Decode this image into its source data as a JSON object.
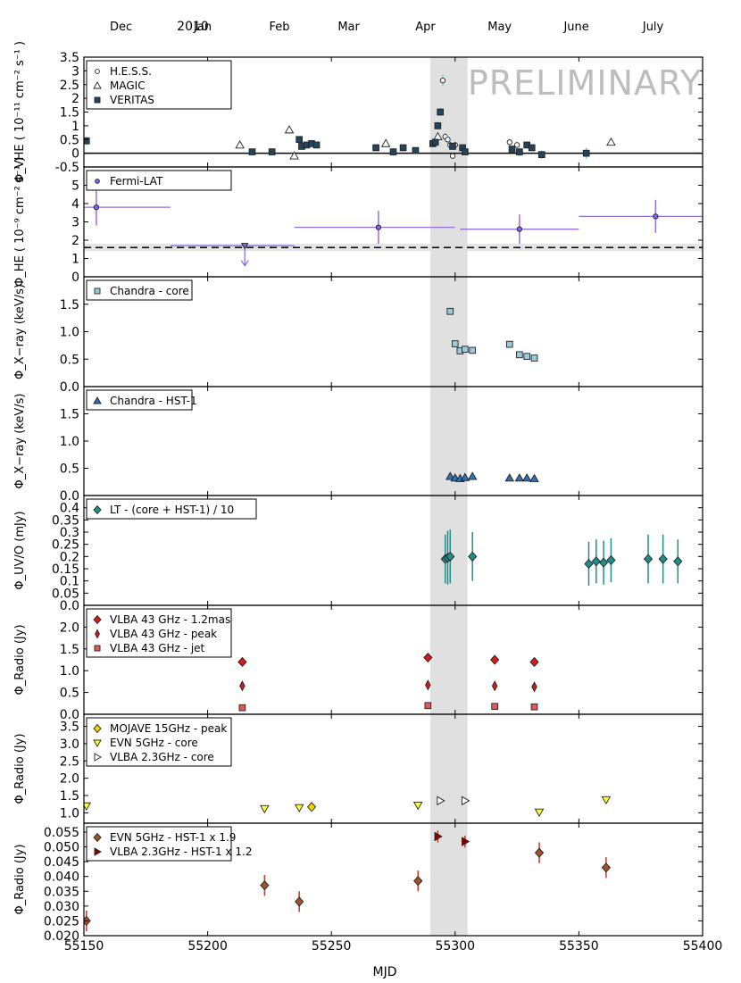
{
  "figure": {
    "year_label": "2010",
    "x_label": "MJD",
    "watermark": "PRELIMINARY",
    "months": [
      "Dec",
      "Jan",
      "Feb",
      "Mar",
      "Apr",
      "May",
      "June",
      "July"
    ],
    "month_positions_mjd": [
      55165,
      55198,
      55229,
      55257,
      55288,
      55318,
      55349,
      55380
    ],
    "xlim": [
      55150,
      55400
    ],
    "xticks": [
      55150,
      55200,
      55250,
      55300,
      55350,
      55400
    ],
    "shaded_band_mjd": [
      55290,
      55305
    ],
    "colors": {
      "band": "#e0e0e0",
      "axis": "#000000"
    }
  },
  "chart_data": [
    {
      "id": "vhe",
      "type": "scatter",
      "ylabel": "Φ_VHE ( 10⁻¹¹ cm⁻² s⁻¹ )",
      "ylim": [
        -0.5,
        3.5
      ],
      "yticks": [
        -0.5,
        0,
        0.5,
        1,
        1.5,
        2,
        2.5,
        3,
        3.5
      ],
      "ytick_labels": [
        "-0.5",
        "0",
        "0.5",
        "1",
        "1.5",
        "2",
        "2.5",
        "3",
        "3.5"
      ],
      "hline": 0,
      "legend_loc": "top-left",
      "series": [
        {
          "name": "H.E.S.S.",
          "marker": "circle",
          "color": "#ffffff",
          "err_color": "#7ec8e3",
          "x": [
            55295,
            55296,
            55297,
            55298,
            55299,
            55300,
            55322,
            55325
          ],
          "y": [
            2.65,
            0.6,
            0.5,
            0.3,
            -0.1,
            0.3,
            0.4,
            0.3
          ],
          "err": [
            0.2,
            0.15,
            0.15,
            0.15,
            0.1,
            0.1,
            0.12,
            0.12
          ]
        },
        {
          "name": "MAGIC",
          "marker": "triangle",
          "color": "#ffffff",
          "err_color": "#7ec8e3",
          "x": [
            55213,
            55233,
            55235,
            55272,
            55293,
            55363
          ],
          "y": [
            0.3,
            0.85,
            -0.1,
            0.35,
            0.6,
            0.4
          ],
          "err": [
            0.1,
            0.12,
            0.1,
            0.1,
            0.15,
            0.12
          ]
        },
        {
          "name": "VERITAS",
          "marker": "square",
          "color": "#24445c",
          "err_color": "#7ec8e3",
          "x": [
            55151,
            55218,
            55226,
            55237,
            55238,
            55240,
            55242,
            55244,
            55268,
            55275,
            55279,
            55284,
            55291,
            55292,
            55293,
            55294,
            55299,
            55303,
            55304,
            55323,
            55326,
            55329,
            55331,
            55335,
            55353
          ],
          "y": [
            0.45,
            0.05,
            0.05,
            0.5,
            0.25,
            0.3,
            0.35,
            0.3,
            0.2,
            0.05,
            0.2,
            0.1,
            0.35,
            0.4,
            1.0,
            1.5,
            0.25,
            0.2,
            0.05,
            0.15,
            0.05,
            0.3,
            0.2,
            -0.05,
            0.0
          ],
          "err": [
            0.15,
            0.1,
            0.12,
            0.1,
            0.12,
            0.1,
            0.1,
            0.1,
            0.12,
            0.15,
            0.12,
            0.12,
            0.1,
            0.12,
            0.15,
            0.15,
            0.1,
            0.12,
            0.12,
            0.12,
            0.15,
            0.12,
            0.12,
            0.15,
            0.2
          ]
        }
      ]
    },
    {
      "id": "he",
      "type": "scatter",
      "ylabel": "Φ_HE ( 10⁻⁹ cm⁻² s⁻¹ )",
      "ylim": [
        0,
        6
      ],
      "yticks": [
        0,
        1,
        2,
        3,
        4,
        5
      ],
      "ytick_labels": [
        "0",
        "1",
        "2",
        "3",
        "4",
        "5"
      ],
      "hline": 1.6,
      "hline_dashed": true,
      "hband": [
        1.4,
        1.8
      ],
      "legend_loc": "top-left",
      "series": [
        {
          "name": "Fermi-LAT",
          "marker": "circle",
          "color": "#7b68ee",
          "err_color": "#9370db",
          "x": [
            55155,
            55269,
            55326,
            55381
          ],
          "y": [
            3.8,
            2.7,
            2.6,
            3.3
          ],
          "err": [
            1.0,
            0.9,
            0.8,
            0.9
          ],
          "xerr": [
            [
              55150,
              55185
            ],
            [
              55235,
              55300
            ],
            [
              55302,
              55350
            ],
            [
              55350,
              55400
            ]
          ]
        },
        {
          "name": "Fermi-LAT upper limit",
          "marker": "down-triangle",
          "color": "#7b68ee",
          "x": [
            55215
          ],
          "y": [
            1.7
          ],
          "xerr": [
            [
              55185,
              55235
            ]
          ],
          "upper_limit": true
        }
      ]
    },
    {
      "id": "xray_core",
      "type": "scatter",
      "ylabel": "Φ_X−ray (keV/s)",
      "ylim": [
        0,
        2
      ],
      "yticks": [
        0,
        0.5,
        1,
        1.5
      ],
      "ytick_labels": [
        "0.0",
        "0.5",
        "1.0",
        "1.5"
      ],
      "legend_loc": "top-left",
      "series": [
        {
          "name": "Chandra - core",
          "marker": "square",
          "color": "#9ec9d9",
          "x": [
            55298,
            55300,
            55302,
            55304,
            55307,
            55322,
            55326,
            55329,
            55332
          ],
          "y": [
            1.37,
            0.78,
            0.65,
            0.68,
            0.66,
            0.77,
            0.58,
            0.55,
            0.52
          ]
        }
      ]
    },
    {
      "id": "xray_hst1",
      "type": "scatter",
      "ylabel": "Φ_X−ray (keV/s)",
      "ylim": [
        0,
        2
      ],
      "yticks": [
        0,
        0.5,
        1,
        1.5
      ],
      "ytick_labels": [
        "0.0",
        "0.5",
        "1.0",
        "1.5"
      ],
      "legend_loc": "top-left",
      "series": [
        {
          "name": "Chandra - HST-1",
          "marker": "triangle",
          "color": "#2e73b8",
          "x": [
            55298,
            55300,
            55302,
            55304,
            55307,
            55322,
            55326,
            55329,
            55332
          ],
          "y": [
            0.35,
            0.32,
            0.31,
            0.33,
            0.35,
            0.32,
            0.32,
            0.32,
            0.31
          ]
        }
      ]
    },
    {
      "id": "uvo",
      "type": "scatter",
      "ylabel": "Φ_UV/O (mJy)",
      "ylim": [
        0,
        0.45
      ],
      "yticks": [
        0,
        0.05,
        0.1,
        0.15,
        0.2,
        0.25,
        0.3,
        0.35,
        0.4
      ],
      "ytick_labels": [
        "0.0",
        "0.05",
        "0.1",
        "0.15",
        "0.2",
        "0.25",
        "0.3",
        "0.35",
        "0.4"
      ],
      "legend_loc": "top-left",
      "series": [
        {
          "name": "LT - (core + HST-1) / 10",
          "marker": "diamond",
          "color": "#1f8f8a",
          "err_color": "#1f8f8a",
          "x": [
            55296,
            55297,
            55298,
            55307,
            55354,
            55357,
            55360,
            55363,
            55378,
            55384,
            55390
          ],
          "y": [
            0.19,
            0.195,
            0.2,
            0.2,
            0.17,
            0.18,
            0.175,
            0.185,
            0.19,
            0.19,
            0.18
          ],
          "err": [
            0.1,
            0.11,
            0.11,
            0.1,
            0.09,
            0.09,
            0.09,
            0.09,
            0.1,
            0.1,
            0.09
          ]
        }
      ]
    },
    {
      "id": "radio43",
      "type": "scatter",
      "ylabel": "Φ_Radio (Jy)",
      "ylim": [
        0,
        2.5
      ],
      "yticks": [
        0,
        0.5,
        1,
        1.5,
        2
      ],
      "ytick_labels": [
        "0.0",
        "0.5",
        "1.0",
        "1.5",
        "2.0"
      ],
      "legend_loc": "top-left",
      "series": [
        {
          "name": "VLBA 43 GHz - 1.2mas",
          "marker": "diamond",
          "color": "#d7191c",
          "x": [
            55214,
            55289,
            55316,
            55332
          ],
          "y": [
            1.2,
            1.3,
            1.25,
            1.2
          ]
        },
        {
          "name": "VLBA 43 GHz - peak",
          "marker": "thin-diamond",
          "color": "#d7191c",
          "x": [
            55214,
            55289,
            55316,
            55332
          ],
          "y": [
            0.65,
            0.67,
            0.65,
            0.63
          ]
        },
        {
          "name": "VLBA 43 GHz - jet",
          "marker": "square",
          "color": "#e05a5a",
          "x": [
            55214,
            55289,
            55316,
            55332
          ],
          "y": [
            0.15,
            0.2,
            0.18,
            0.17
          ]
        }
      ]
    },
    {
      "id": "radio_low",
      "type": "scatter",
      "ylabel": "Φ_Radio (Jy)",
      "ylim": [
        0.7,
        3.85
      ],
      "yticks": [
        1,
        1.5,
        2,
        2.5,
        3,
        3.5
      ],
      "ytick_labels": [
        "1.0",
        "1.5",
        "2.0",
        "2.5",
        "3.0",
        "3.5"
      ],
      "legend_loc": "top-left",
      "series": [
        {
          "name": "MOJAVE 15GHz - peak",
          "marker": "diamond",
          "color": "#f2d200",
          "x": [
            55242
          ],
          "y": [
            1.17
          ]
        },
        {
          "name": "EVN 5GHz - core",
          "marker": "down-triangle",
          "color": "#ffff33",
          "x": [
            55151,
            55223,
            55237,
            55285,
            55334,
            55361
          ],
          "y": [
            1.2,
            1.12,
            1.15,
            1.22,
            1.02,
            1.38
          ]
        },
        {
          "name": "VLBA 2.3GHz - core",
          "marker": "right-triangle",
          "color": "#ffffff",
          "x": [
            55294,
            55304
          ],
          "y": [
            1.35,
            1.35
          ]
        }
      ]
    },
    {
      "id": "radio_hst1",
      "type": "scatter",
      "ylabel": "Φ_Radio (Jy)",
      "ylim": [
        0.02,
        0.058
      ],
      "yticks": [
        0.02,
        0.025,
        0.03,
        0.035,
        0.04,
        0.045,
        0.05,
        0.055
      ],
      "ytick_labels": [
        "0.020",
        "0.025",
        "0.030",
        "0.035",
        "0.040",
        "0.045",
        "0.050",
        "0.055"
      ],
      "legend_loc": "top-left",
      "series": [
        {
          "name": "EVN 5GHz - HST-1 x 1.9",
          "marker": "diamond",
          "color": "#a0522d",
          "err_color": "#c0392b",
          "x": [
            55151,
            55223,
            55237,
            55285,
            55334,
            55361
          ],
          "y": [
            0.025,
            0.037,
            0.0315,
            0.0385,
            0.048,
            0.043
          ],
          "err": [
            0.0035,
            0.0035,
            0.0035,
            0.0035,
            0.0035,
            0.0035
          ]
        },
        {
          "name": "VLBA 2.3GHz - HST-1 x 1.2",
          "marker": "right-triangle",
          "color": "#8b0000",
          "err_color": "#c0392b",
          "x": [
            55293,
            55304
          ],
          "y": [
            0.0535,
            0.0518
          ],
          "err": [
            0.002,
            0.002
          ]
        }
      ]
    }
  ]
}
